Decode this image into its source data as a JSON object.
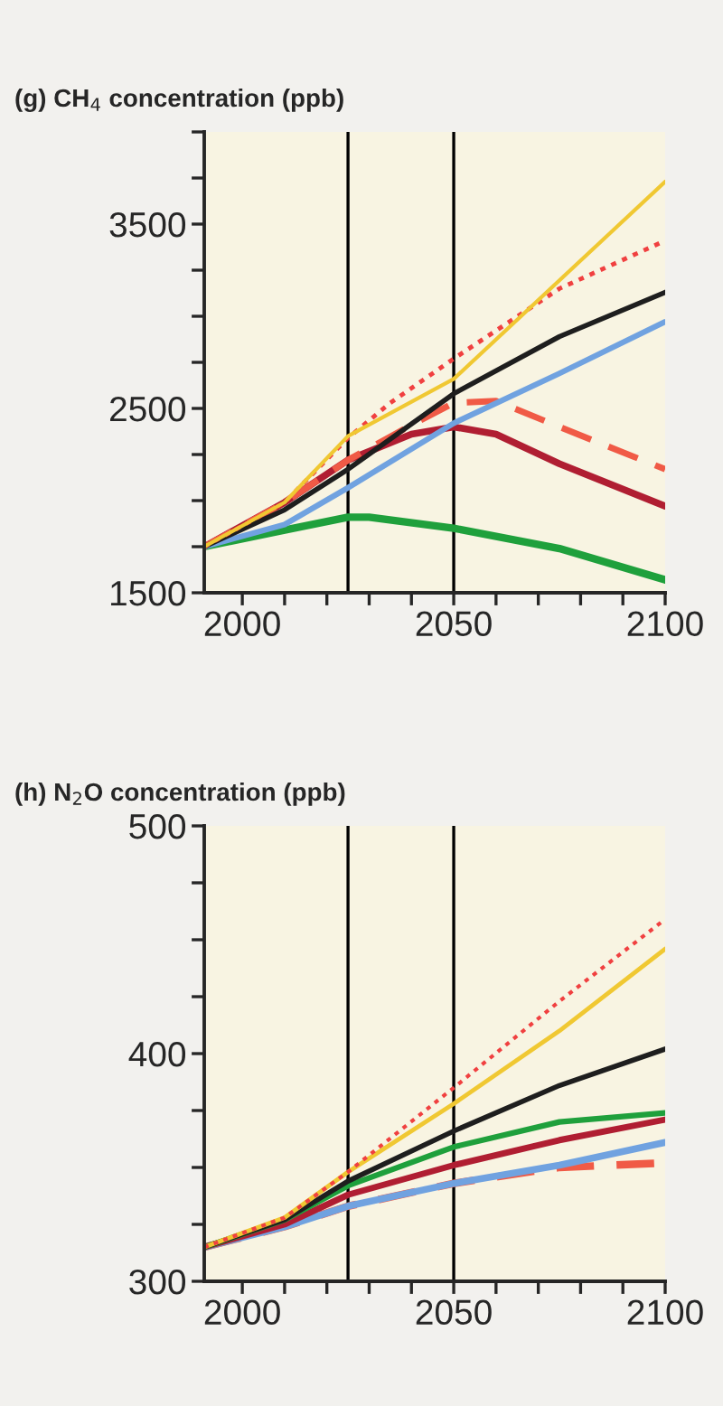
{
  "chart_data": [
    {
      "type": "line",
      "title": "(g) CH$_{4}$ concentration (ppb)",
      "xlim": [
        1991,
        2100
      ],
      "ylim": [
        1500,
        4000
      ],
      "xticks": [
        2000,
        {
          "value": 2010,
          "label": null
        },
        {
          "value": 2020,
          "label": null
        },
        {
          "value": 2030,
          "label": null
        },
        {
          "value": 2040,
          "label": null
        },
        2050,
        {
          "value": 2060,
          "label": null
        },
        {
          "value": 2070,
          "label": null
        },
        {
          "value": 2080,
          "label": null
        },
        {
          "value": 2090,
          "label": null
        },
        2100
      ],
      "yticks": [
        1500,
        {
          "value": 1750,
          "label": null
        },
        {
          "value": 2000,
          "label": null
        },
        {
          "value": 2250,
          "label": null
        },
        2500,
        {
          "value": 2750,
          "label": null
        },
        {
          "value": 3000,
          "label": null
        },
        {
          "value": 3250,
          "label": null
        },
        3500,
        {
          "value": 3750,
          "label": null
        },
        {
          "value": 4000,
          "label": null
        }
      ],
      "grid": false,
      "marker": "none",
      "ref_lines": [
        {
          "axis": "x",
          "value": 2025,
          "label": null,
          "color": "#000000"
        },
        {
          "axis": "x",
          "value": 2050,
          "label": null,
          "color": "#000000"
        }
      ],
      "series": [
        {
          "color": "#1fa03c",
          "line_style": "solid",
          "x": [
            1991,
            2010,
            2025,
            2030,
            2050,
            2075,
            2100
          ],
          "values": [
            1750,
            1840,
            1910,
            1910,
            1850,
            1740,
            1570
          ]
        },
        {
          "color": "#b01e32",
          "line_style": "solid",
          "x": [
            1991,
            2010,
            2025,
            2040,
            2050,
            2060,
            2075,
            2100
          ],
          "values": [
            1750,
            1990,
            2220,
            2360,
            2400,
            2360,
            2200,
            1970
          ]
        },
        {
          "color": "#f05a46",
          "line_style": "dashed",
          "x": [
            1991,
            2010,
            2025,
            2040,
            2050,
            2060,
            2075,
            2100
          ],
          "values": [
            1750,
            1990,
            2220,
            2410,
            2530,
            2540,
            2400,
            2170
          ]
        },
        {
          "color": "#70a2e0",
          "line_style": "solid",
          "x": [
            1991,
            2010,
            2025,
            2050,
            2075,
            2100
          ],
          "values": [
            1750,
            1870,
            2070,
            2420,
            2690,
            2970
          ]
        },
        {
          "color": "#1e1e1e",
          "line_style": "solid",
          "x": [
            1991,
            2010,
            2025,
            2050,
            2075,
            2100
          ],
          "values": [
            1750,
            1950,
            2170,
            2580,
            2890,
            3130
          ]
        },
        {
          "color": "#f04040",
          "line_style": "dotted",
          "x": [
            1991,
            2010,
            2025,
            2035,
            2050,
            2075,
            2100
          ],
          "values": [
            1750,
            1990,
            2340,
            2530,
            2770,
            3150,
            3410
          ]
        },
        {
          "color": "#f0c832",
          "line_style": "solid",
          "x": [
            1991,
            2010,
            2025,
            2050,
            2100
          ],
          "values": [
            1750,
            1990,
            2350,
            2660,
            3730
          ]
        }
      ]
    },
    {
      "type": "line",
      "title": "(h) N$_{2}$O concentration (ppb)",
      "xlim": [
        1991,
        2100
      ],
      "ylim": [
        300,
        500
      ],
      "xticks": [
        2000,
        {
          "value": 2010,
          "label": null
        },
        {
          "value": 2020,
          "label": null
        },
        {
          "value": 2030,
          "label": null
        },
        {
          "value": 2040,
          "label": null
        },
        2050,
        {
          "value": 2060,
          "label": null
        },
        {
          "value": 2070,
          "label": null
        },
        {
          "value": 2080,
          "label": null
        },
        {
          "value": 2090,
          "label": null
        },
        2100
      ],
      "yticks": [
        300,
        {
          "value": 325,
          "label": null
        },
        {
          "value": 350,
          "label": null
        },
        {
          "value": 375,
          "label": null
        },
        400,
        {
          "value": 425,
          "label": null
        },
        {
          "value": 450,
          "label": null
        },
        {
          "value": 475,
          "label": null
        },
        500
      ],
      "grid": false,
      "marker": "none",
      "ref_lines": [
        {
          "axis": "x",
          "value": 2025,
          "label": null,
          "color": "#000000"
        },
        {
          "axis": "x",
          "value": 2050,
          "label": null,
          "color": "#000000"
        }
      ],
      "series": [
        {
          "color": "#f05a46",
          "line_style": "dashed",
          "x": [
            1991,
            2010,
            2025,
            2050,
            2075,
            2100
          ],
          "values": [
            315,
            324,
            333,
            343,
            350,
            352
          ]
        },
        {
          "color": "#70a2e0",
          "line_style": "solid",
          "x": [
            1991,
            2010,
            2025,
            2050,
            2075,
            2100
          ],
          "values": [
            315,
            324,
            333,
            343,
            351,
            361
          ]
        },
        {
          "color": "#b01e32",
          "line_style": "solid",
          "x": [
            1991,
            2010,
            2025,
            2050,
            2075,
            2100
          ],
          "values": [
            315,
            325,
            338,
            351,
            362,
            371
          ]
        },
        {
          "color": "#1fa03c",
          "line_style": "solid",
          "x": [
            1991,
            2010,
            2025,
            2050,
            2075,
            2100
          ],
          "values": [
            315,
            327,
            342,
            359,
            370,
            374
          ]
        },
        {
          "color": "#1e1e1e",
          "line_style": "solid",
          "x": [
            1991,
            2010,
            2025,
            2050,
            2075,
            2100
          ],
          "values": [
            315,
            327,
            344,
            366,
            386,
            402
          ]
        },
        {
          "color": "#f0c832",
          "line_style": "solid",
          "x": [
            1991,
            2010,
            2025,
            2050,
            2075,
            2100
          ],
          "values": [
            315,
            328,
            348,
            378,
            410,
            446
          ]
        },
        {
          "color": "#f04040",
          "line_style": "dotted",
          "x": [
            1991,
            2010,
            2025,
            2050,
            2075,
            2100
          ],
          "values": [
            315,
            328,
            348,
            385,
            423,
            459
          ]
        }
      ]
    }
  ]
}
